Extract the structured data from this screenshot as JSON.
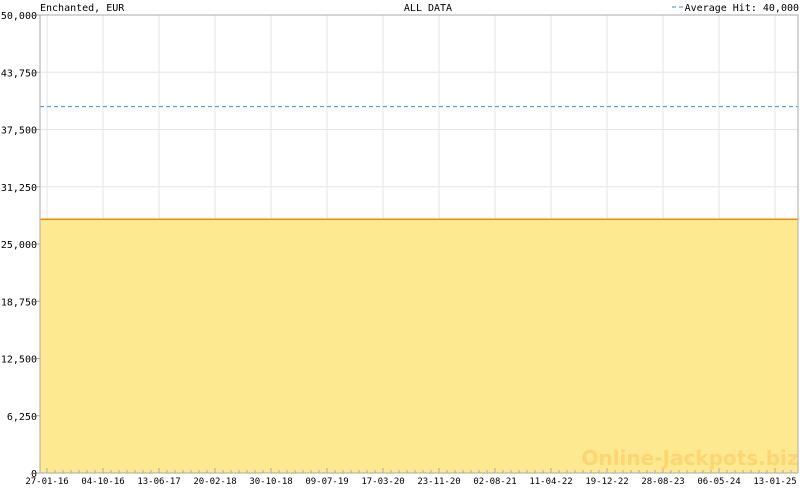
{
  "chart_data": {
    "type": "area",
    "title": "ALL DATA",
    "subtitle_left": "Enchanted, EUR",
    "legend": {
      "label": "Average Hit: 40,000",
      "placement": "top-right",
      "style": "dashed"
    },
    "average_hit": 40000,
    "ylim": [
      0,
      50000
    ],
    "yticks": [
      0,
      6250,
      12500,
      18750,
      25000,
      31250,
      37500,
      43750,
      50000
    ],
    "ytick_labels": [
      "0",
      "6,250",
      "12,500",
      "18,750",
      "25,000",
      "31,250",
      "37,500",
      "43,750",
      "50,000"
    ],
    "xtick_labels": [
      "27-01-16",
      "04-10-16",
      "13-06-17",
      "20-02-18",
      "30-10-18",
      "09-07-19",
      "17-03-20",
      "23-11-20",
      "02-08-21",
      "11-04-22",
      "19-12-22",
      "28-08-23",
      "06-05-24",
      "13-01-25"
    ],
    "series": [
      {
        "x": [
          "27-01-16",
          "13-01-25"
        ],
        "values": [
          27700,
          27700
        ]
      }
    ],
    "grid": true,
    "watermark": "Online-Jackpots.biz",
    "colors": {
      "area": "#fde98f",
      "line": "#ff8800",
      "average": "#3a8ec8",
      "grid": "#e6e6e6",
      "axis": "#aaaaaa"
    }
  }
}
